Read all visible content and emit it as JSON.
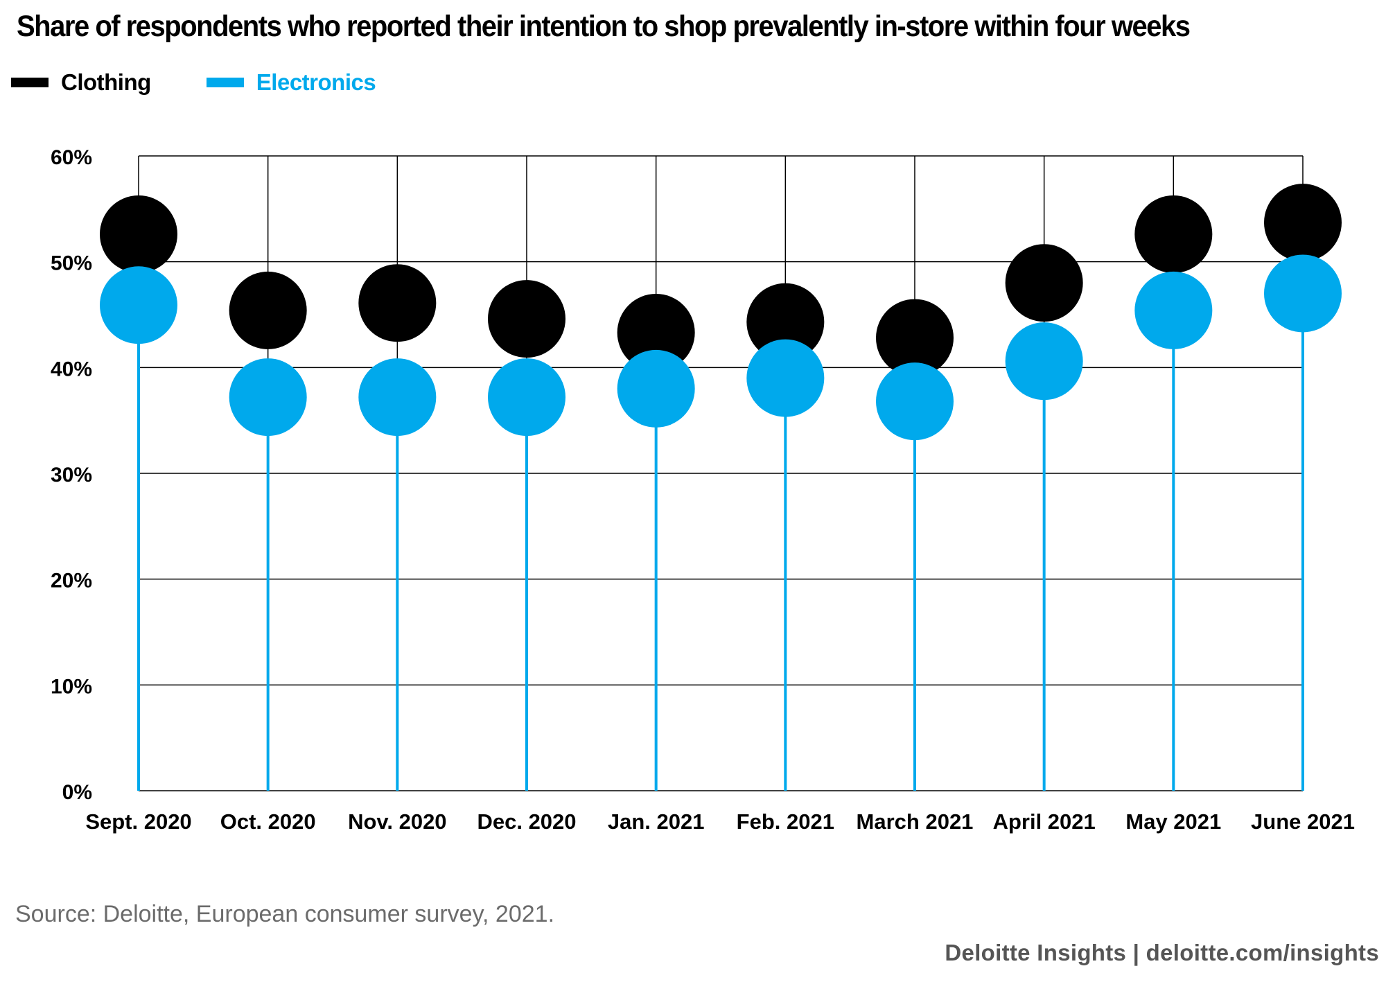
{
  "colors": {
    "clothing": "#000000",
    "electronics": "#00a9ec",
    "grid": "#000000"
  },
  "legend": {
    "clothing_label": "Clothing",
    "electronics_label": "Electronics"
  },
  "source": "Source: Deloitte, European consumer survey, 2021.",
  "footer": "Deloitte Insights | deloitte.com/insights",
  "chart_data": {
    "type": "scatter",
    "title": "Share of respondents who reported their intention to shop prevalently in-store within four weeks",
    "categories": [
      "Sept. 2020",
      "Oct. 2020",
      "Nov. 2020",
      "Dec. 2020",
      "Jan. 2021",
      "Feb. 2021",
      "March 2021",
      "April 2021",
      "May 2021",
      "June 2021"
    ],
    "series": [
      {
        "name": "Clothing",
        "values": [
          52.6,
          45.4,
          46.1,
          44.6,
          43.3,
          44.3,
          42.8,
          48.0,
          52.6,
          53.7
        ]
      },
      {
        "name": "Electronics",
        "values": [
          45.9,
          37.2,
          37.2,
          37.2,
          38.0,
          39.0,
          36.8,
          40.6,
          45.4,
          47.0
        ]
      }
    ],
    "yticks": [
      "0%",
      "10%",
      "20%",
      "30%",
      "40%",
      "50%",
      "60%"
    ],
    "ylim": [
      0,
      60
    ],
    "xlabel": "",
    "ylabel": "",
    "grid": true,
    "legend_position": "top-left"
  }
}
